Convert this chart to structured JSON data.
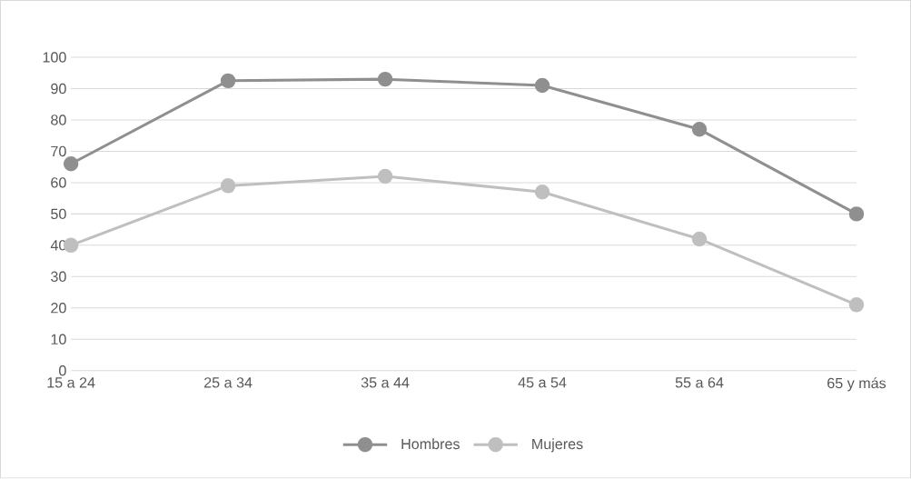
{
  "chart_data": {
    "type": "line",
    "categories": [
      "15 a 24",
      "25 a 34",
      "35 a 44",
      "45 a 54",
      "55 a 64",
      "65 y más"
    ],
    "series": [
      {
        "name": "Hombres",
        "color": "#8f8f8f",
        "values": [
          66,
          92.5,
          93,
          91,
          77,
          50
        ]
      },
      {
        "name": "Mujeres",
        "color": "#bfbfbf",
        "values": [
          40,
          59,
          62,
          57,
          42,
          21
        ]
      }
    ],
    "ylim": [
      0,
      100
    ],
    "yticks": [
      0,
      10,
      20,
      30,
      40,
      50,
      60,
      70,
      80,
      90,
      100
    ],
    "grid": "y",
    "legend": "bottom",
    "marker": "circle",
    "line_style": "solid"
  }
}
